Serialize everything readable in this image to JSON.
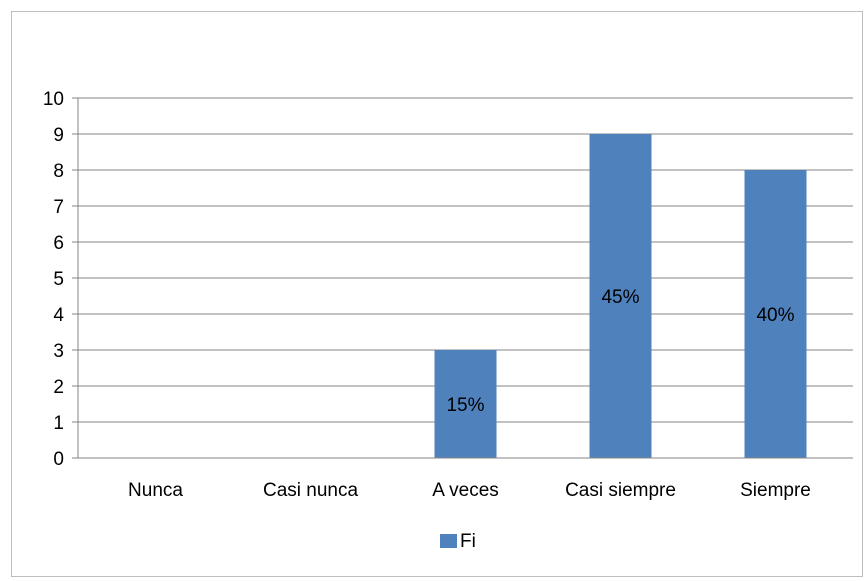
{
  "chart_data": {
    "type": "bar",
    "categories": [
      "Nunca",
      "Casi nunca",
      "A veces",
      "Casi siempre",
      "Siempre"
    ],
    "series": [
      {
        "name": "Fi",
        "values": [
          0,
          0,
          3,
          9,
          8
        ],
        "data_labels": [
          "",
          "",
          "15%",
          "45%",
          "40%"
        ],
        "color": "#4f81bd"
      }
    ],
    "ylim": [
      0,
      10
    ],
    "yticks": [
      "0",
      "1",
      "2",
      "3",
      "4",
      "5",
      "6",
      "7",
      "8",
      "9",
      "10"
    ],
    "grid": "horizontal",
    "legend_position": "bottom",
    "gridline_color": "#868686"
  }
}
